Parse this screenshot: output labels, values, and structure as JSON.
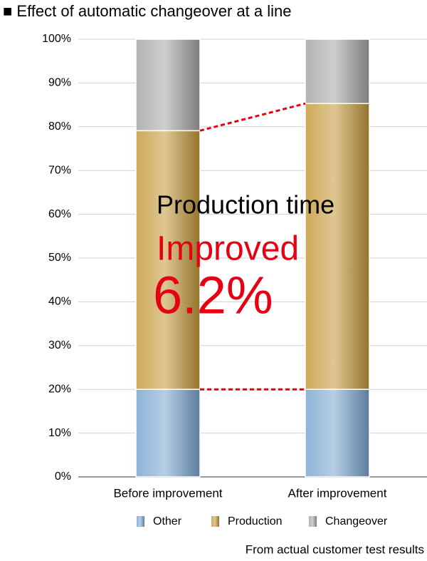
{
  "chart_data": {
    "type": "stacked_bar",
    "title": "■ Effect of automatic changeover at a line",
    "categories": [
      "Before improvement",
      "After improvement"
    ],
    "series": [
      {
        "name": "Other",
        "color": "#7aa6cf",
        "values": [
          20,
          20
        ]
      },
      {
        "name": "Production",
        "color": "#c49a3a",
        "values": [
          59.1,
          65.3
        ]
      },
      {
        "name": "Changeover",
        "color": "#a6a6a6",
        "values": [
          20.9,
          14.7
        ]
      }
    ],
    "ylim": [
      0,
      100
    ],
    "yticks": [
      {
        "value": 0,
        "label": "0%"
      },
      {
        "value": 10,
        "label": "10%"
      },
      {
        "value": 20,
        "label": "20%"
      },
      {
        "value": 30,
        "label": "30%"
      },
      {
        "value": 40,
        "label": "40%"
      },
      {
        "value": 50,
        "label": "50%"
      },
      {
        "value": 60,
        "label": "60%"
      },
      {
        "value": 70,
        "label": "70%"
      },
      {
        "value": 80,
        "label": "80%"
      },
      {
        "value": 90,
        "label": "90%"
      },
      {
        "value": 100,
        "label": "100%"
      }
    ],
    "grid": true,
    "annotations": [
      "Production time",
      "Improved",
      "6.2%"
    ],
    "annotation_color": "#e60012",
    "footnote": "From actual customer test results"
  }
}
